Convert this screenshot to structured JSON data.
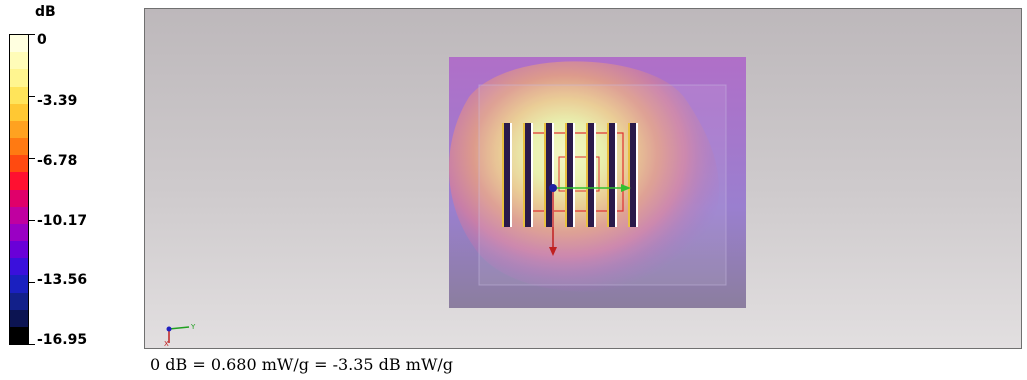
{
  "legend": {
    "unit": "dB",
    "labels": [
      "0",
      "-3.39",
      "-6.78",
      "-10.17",
      "-13.56",
      "-16.95"
    ],
    "colors": [
      "#ffffe0",
      "#fffcb8",
      "#fff590",
      "#ffe45a",
      "#ffc833",
      "#ffa220",
      "#ff7a12",
      "#ff4a10",
      "#ff1030",
      "#e0006a",
      "#c000a0",
      "#9a00c4",
      "#6a00d8",
      "#3a10dc",
      "#1a20c0",
      "#12208a",
      "#0c1452",
      "#000000"
    ]
  },
  "viewport": {
    "axis_y_label": "Y",
    "axis_x_label": "X"
  },
  "caption": {
    "text": "0 dB = 0.680 mW/g = -3.35 dB mW/g"
  }
}
